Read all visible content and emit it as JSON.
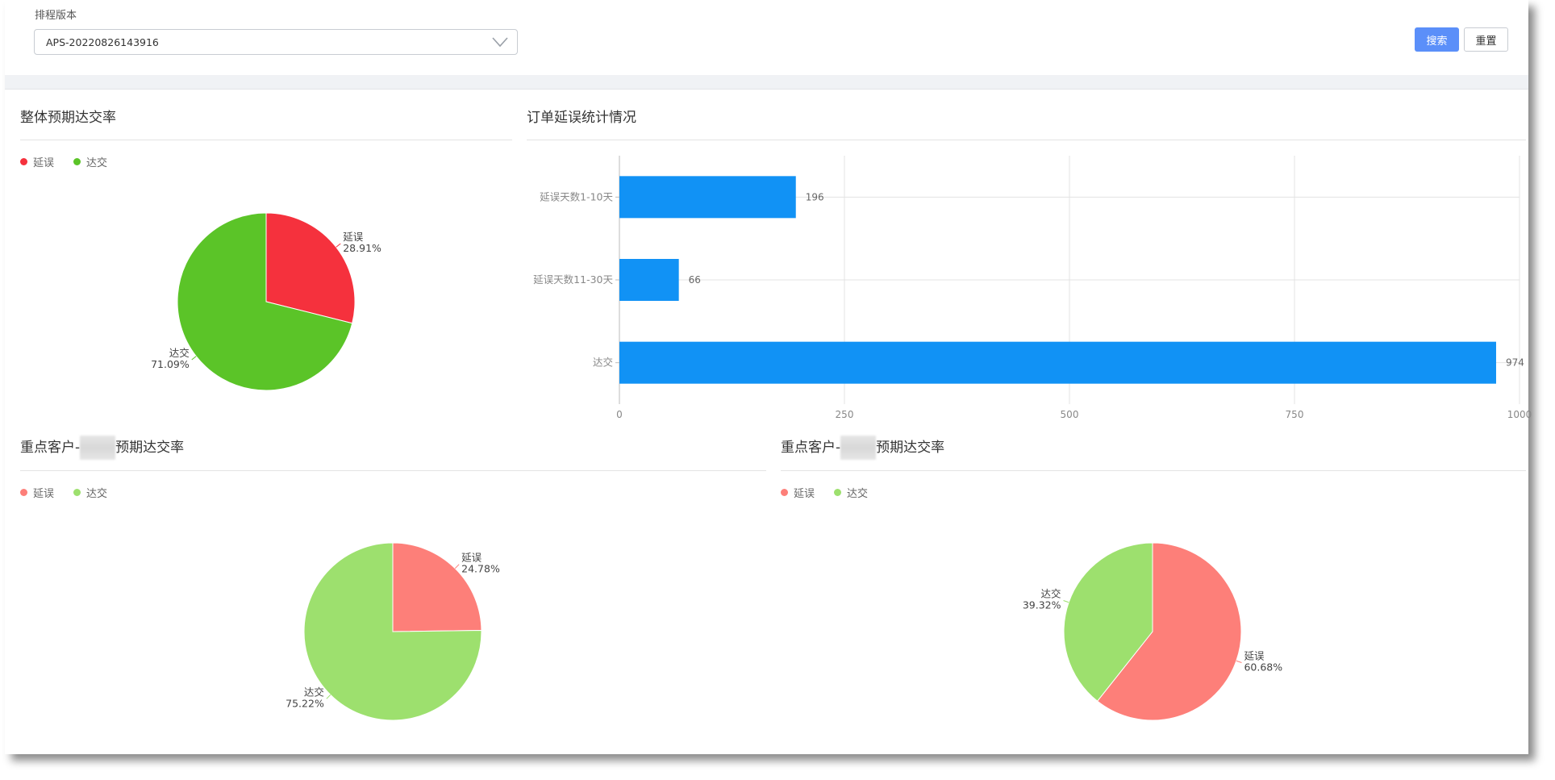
{
  "filter": {
    "label": "排程版本",
    "selected": "APS-20220826143916"
  },
  "buttons": {
    "search": "搜索",
    "reset": "重置"
  },
  "colors": {
    "primary": "#5b8ff9",
    "delay": "#f5313d",
    "ontime": "#5bc428",
    "delay_light": "#fd7f79",
    "ontime_light": "#9de06e",
    "bar": "#1192f5"
  },
  "pie_overall": {
    "title": "整体预期达交率",
    "legend": [
      "延误",
      "达交"
    ],
    "chart_data": {
      "type": "pie",
      "slices": [
        {
          "label": "延误",
          "value": 28.91,
          "text": "28.91%"
        },
        {
          "label": "达交",
          "value": 71.09,
          "text": "71.09%"
        }
      ]
    }
  },
  "bar_delay": {
    "title": "订单延误统计情况",
    "chart_data": {
      "type": "bar",
      "orientation": "horizontal",
      "categories": [
        "延误天数1-10天",
        "延误天数11-30天",
        "达交"
      ],
      "values": [
        196,
        66,
        974
      ],
      "xlim": [
        0,
        1000
      ],
      "xticks": [
        "0",
        "250",
        "500",
        "750",
        "1000"
      ],
      "grid": true
    }
  },
  "pie_customer_a": {
    "title_prefix": "重点客户-",
    "title_suffix": "预期达交率",
    "legend": [
      "延误",
      "达交"
    ],
    "chart_data": {
      "type": "pie",
      "slices": [
        {
          "label": "延误",
          "value": 24.78,
          "text": "24.78%"
        },
        {
          "label": "达交",
          "value": 75.22,
          "text": "75.22%"
        }
      ]
    }
  },
  "pie_customer_b": {
    "title_prefix": "重点客户-",
    "title_suffix": "预期达交率",
    "legend": [
      "延误",
      "达交"
    ],
    "chart_data": {
      "type": "pie",
      "slices": [
        {
          "label": "延误",
          "value": 60.68,
          "text": "60.68%"
        },
        {
          "label": "达交",
          "value": 39.32,
          "text": "39.32%"
        }
      ]
    }
  }
}
